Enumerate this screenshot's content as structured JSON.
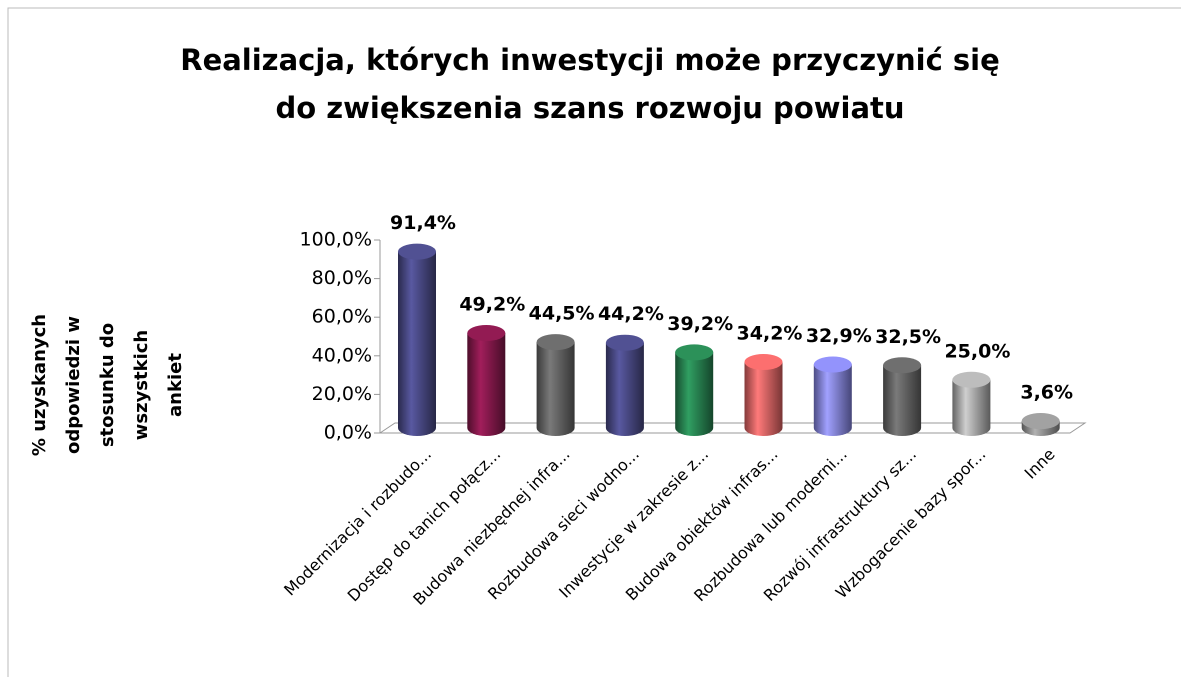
{
  "chart_data": {
    "type": "bar3d",
    "title": [
      "Realizacja, których inwestycji może przyczynić się",
      "do zwiększenia szans rozwoju powiatu"
    ],
    "y_label": [
      "% uzyskanych",
      "odpowiedzi w",
      "stosunku do",
      "wszystkich",
      "ankiet"
    ],
    "categories": [
      "Modernizacja i rozbudo...",
      "Dostęp do tanich połącz...",
      "Budowa niezbędnej infra...",
      "Rozbudowa sieci wodno...",
      "Inwestycje w zakresie z...",
      "Budowa obiektów infras...",
      "Rozbudowa lub moderni...",
      "Rozwój infrastruktury sz...",
      "Wzbogacenie bazy spor...",
      "Inne"
    ],
    "values": [
      91.4,
      49.2,
      44.5,
      44.2,
      39.2,
      34.2,
      32.9,
      32.5,
      25.0,
      3.6
    ],
    "value_labels": [
      "91,4%",
      "49,2%",
      "44,5%",
      "44,2%",
      "39,2%",
      "34,2%",
      "32,9%",
      "32,5%",
      "25,0%",
      "3,6%"
    ],
    "colors": [
      "#4d4d8c",
      "#8c1a4f",
      "#6a6a6a",
      "#4d4d8c",
      "#2a8a55",
      "#f06a6a",
      "#8c8cf0",
      "#6a6a6a",
      "#b4b4b4",
      "#9a9a9a"
    ],
    "ylim": [
      0,
      100
    ],
    "yticks": [
      {
        "value": 0,
        "label": "0,0%"
      },
      {
        "value": 20,
        "label": "20,0%"
      },
      {
        "value": 40,
        "label": "40,0%"
      },
      {
        "value": 60,
        "label": "60,0%"
      },
      {
        "value": 80,
        "label": "80,0%"
      },
      {
        "value": 100,
        "label": "100,0%"
      }
    ],
    "grid": false
  }
}
